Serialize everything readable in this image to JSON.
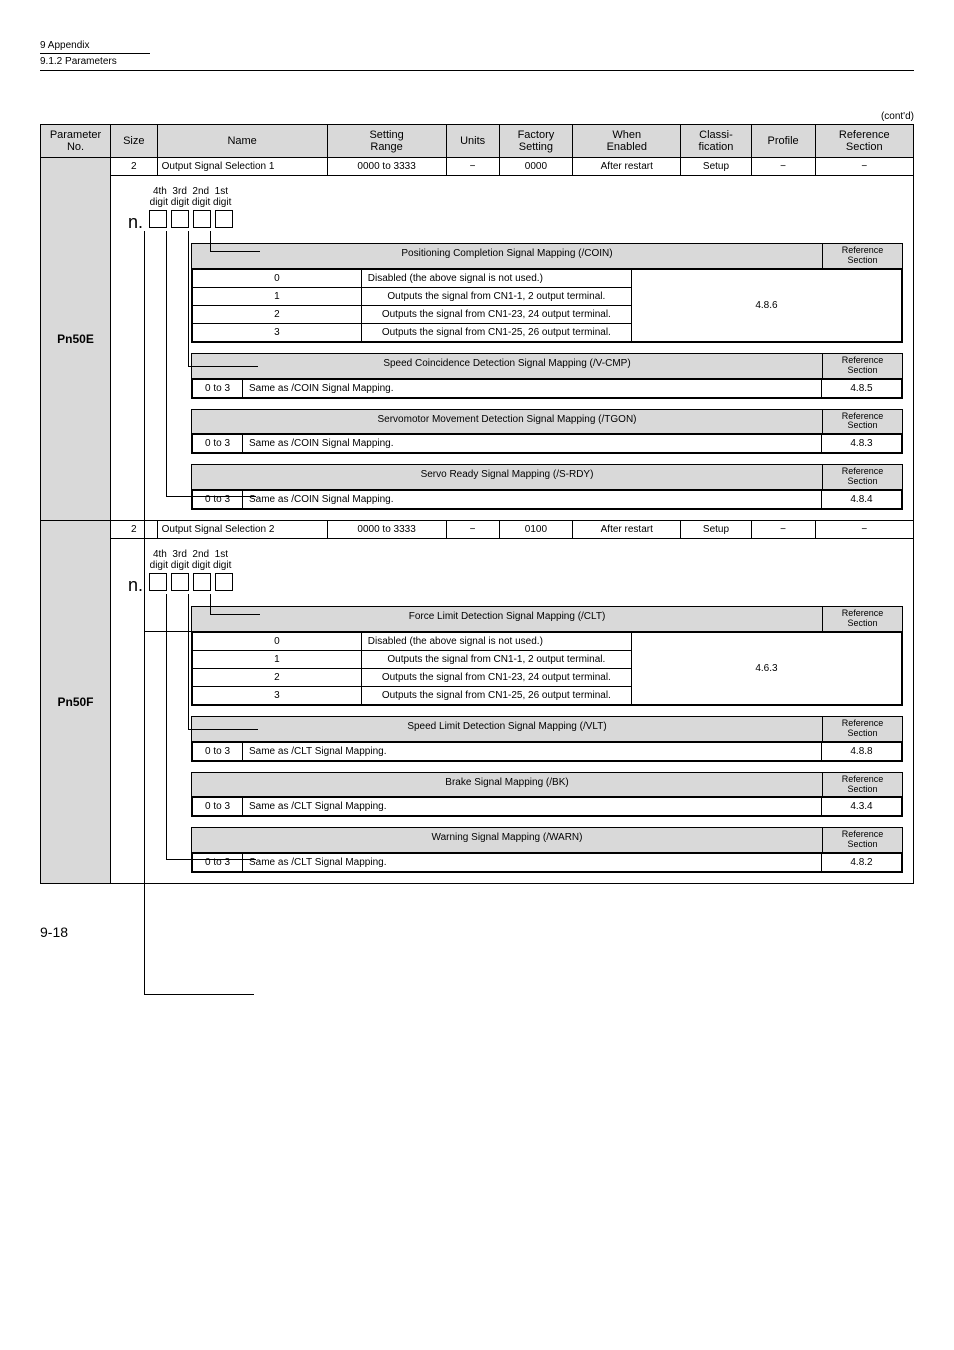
{
  "page": {
    "header_chapter": "9  Appendix",
    "header_section": "9.1.2  Parameters",
    "contd": "(cont'd)",
    "page_number": "9-18"
  },
  "columns": {
    "param_no": "Parameter\nNo.",
    "size": "Size",
    "name": "Name",
    "setting_range": "Setting\nRange",
    "units": "Units",
    "factory_setting": "Factory\nSetting",
    "when_enabled": "When\nEnabled",
    "classification": "Classi-\nfication",
    "profile": "Profile",
    "reference_section": "Reference\nSection"
  },
  "pn50e": {
    "id": "Pn50E",
    "row": {
      "size": "2",
      "name": "Output Signal Selection 1",
      "range": "0000 to 3333",
      "units": "−",
      "factory": "0000",
      "when": "After restart",
      "classi": "Setup",
      "profile": "−",
      "ref": "−"
    },
    "digit_labels_top": "4th  3rd  2nd  1st",
    "digit_labels_bottom": "digit digit digit digit",
    "n_prefix": "n.",
    "sections": [
      {
        "title": "Positioning Completion Signal Mapping (/COIN)",
        "ref_header": "Reference\nSection",
        "rows": [
          {
            "k": "0",
            "v": "Disabled (the above signal is not used.)",
            "ref": ""
          },
          {
            "k": "1",
            "v": "Outputs the signal from CN1-1, 2 output terminal.",
            "ref": ""
          },
          {
            "k": "2",
            "v": "Outputs the signal from CN1-23, 24 output terminal.",
            "ref": ""
          },
          {
            "k": "3",
            "v": "Outputs the signal from CN1-25, 26 output terminal.",
            "ref": ""
          }
        ],
        "merged_ref": "4.8.6"
      },
      {
        "title": "Speed Coincidence Detection Signal Mapping (/V-CMP)",
        "ref_header": "Reference\nSection",
        "rows": [
          {
            "k": "0 to 3",
            "v": "Same as /COIN Signal Mapping.",
            "ref": "4.8.5"
          }
        ]
      },
      {
        "title": "Servomotor Movement Detection Signal Mapping (/TGON)",
        "ref_header": "Reference\nSection",
        "rows": [
          {
            "k": "0 to 3",
            "v": "Same as /COIN Signal Mapping.",
            "ref": "4.8.3"
          }
        ]
      },
      {
        "title": "Servo Ready Signal Mapping (/S-RDY)",
        "ref_header": "Reference\nSection",
        "rows": [
          {
            "k": "0 to 3",
            "v": "Same as /COIN Signal Mapping.",
            "ref": "4.8.4"
          }
        ]
      }
    ]
  },
  "pn50f": {
    "id": "Pn50F",
    "row": {
      "size": "2",
      "name": "Output Signal Selection 2",
      "range": "0000 to 3333",
      "units": "−",
      "factory": "0100",
      "when": "After restart",
      "classi": "Setup",
      "profile": "−",
      "ref": "−"
    },
    "digit_labels_top": "4th  3rd  2nd  1st",
    "digit_labels_bottom": "digit digit digit digit",
    "n_prefix": "n.",
    "sections": [
      {
        "title": "Force Limit Detection Signal Mapping (/CLT)",
        "ref_header": "Reference\nSection",
        "rows": [
          {
            "k": "0",
            "v": "Disabled (the above signal is not used.)",
            "ref": ""
          },
          {
            "k": "1",
            "v": "Outputs the signal from CN1-1, 2 output terminal.",
            "ref": ""
          },
          {
            "k": "2",
            "v": "Outputs the signal from CN1-23, 24 output terminal.",
            "ref": ""
          },
          {
            "k": "3",
            "v": "Outputs the signal from CN1-25, 26 output terminal.",
            "ref": ""
          }
        ],
        "merged_ref": "4.6.3"
      },
      {
        "title": "Speed Limit Detection Signal Mapping (/VLT)",
        "ref_header": "Reference\nSection",
        "rows": [
          {
            "k": "0 to 3",
            "v": "Same as /CLT Signal Mapping.",
            "ref": "4.8.8"
          }
        ]
      },
      {
        "title": "Brake Signal Mapping (/BK)",
        "ref_header": "Reference\nSection",
        "rows": [
          {
            "k": "0 to 3",
            "v": "Same as /CLT Signal Mapping.",
            "ref": "4.3.4"
          }
        ]
      },
      {
        "title": "Warning Signal Mapping (/WARN)",
        "ref_header": "Reference\nSection",
        "rows": [
          {
            "k": "0 to 3",
            "v": "Same as /CLT Signal Mapping.",
            "ref": "4.8.2"
          }
        ]
      }
    ]
  }
}
